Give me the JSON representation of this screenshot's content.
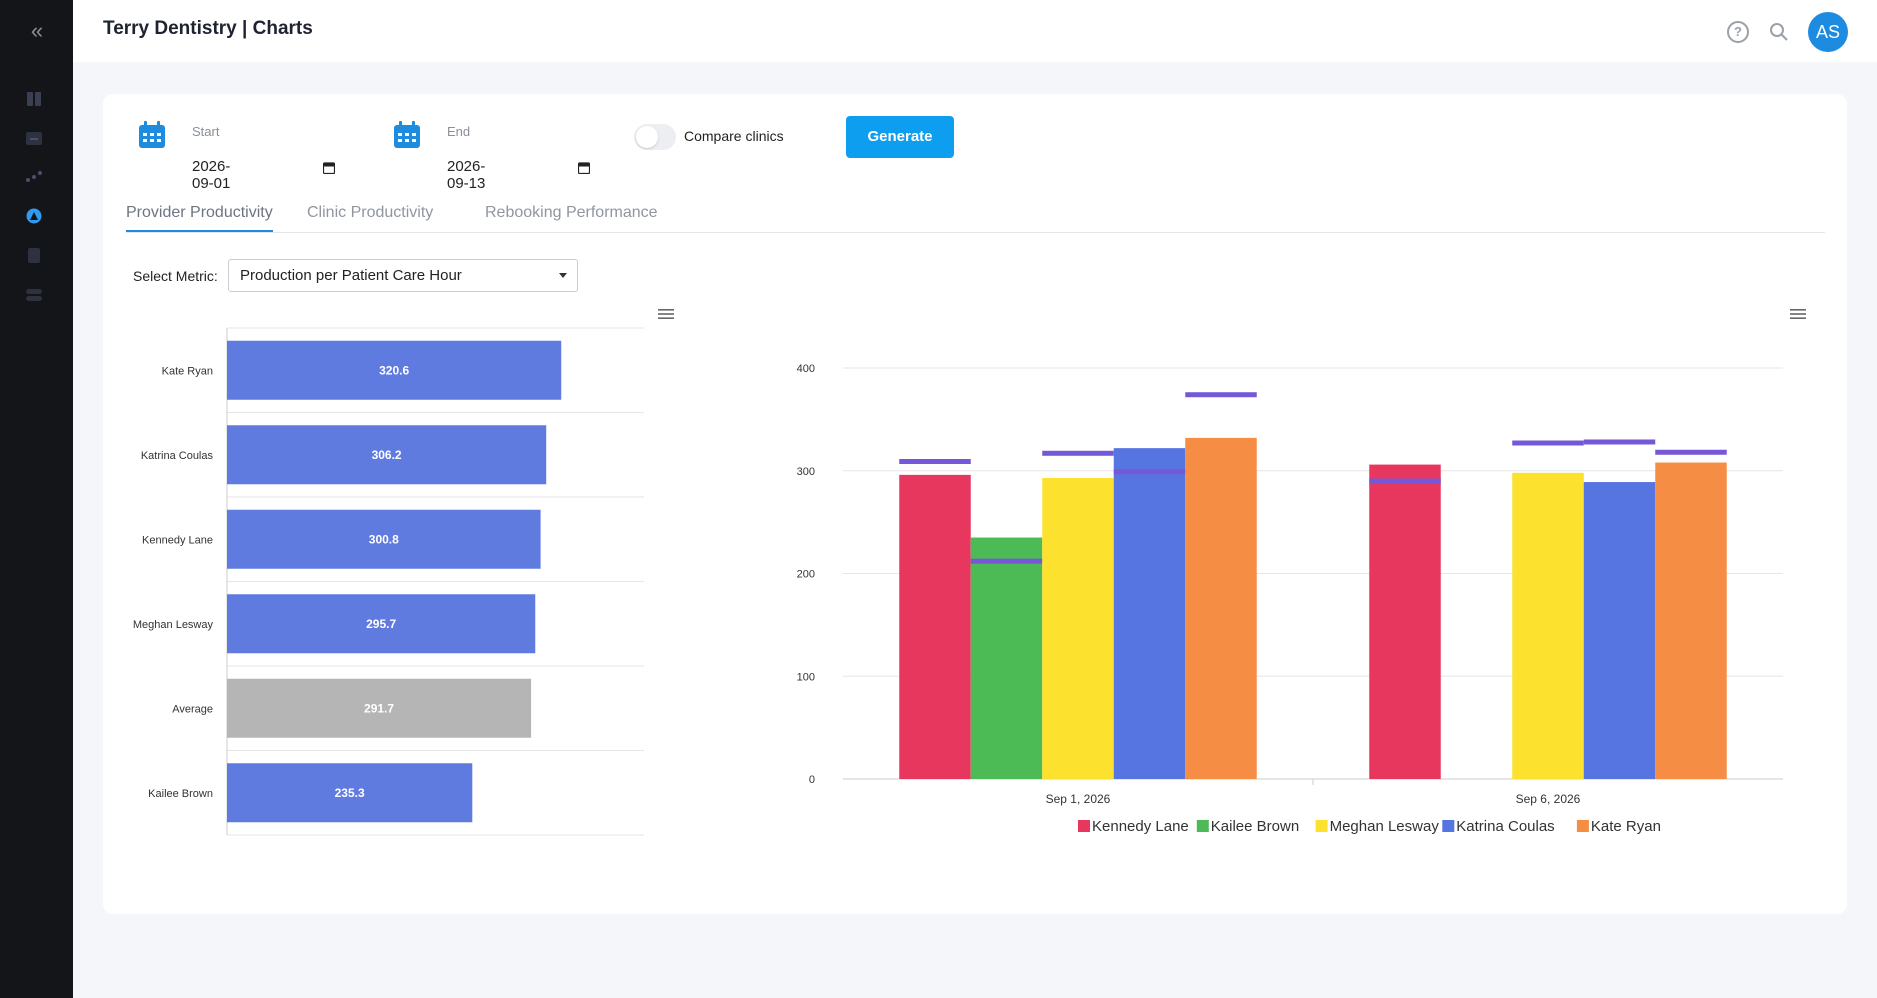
{
  "header": {
    "title": "Terry Dentistry | Charts",
    "avatar_initials": "AS"
  },
  "sidebar": {
    "collapse_icon": "double-chevron-left-icon",
    "items": [
      {
        "icon": "dashboard-icon"
      },
      {
        "icon": "chat-icon"
      },
      {
        "icon": "scatter-icon"
      },
      {
        "icon": "chart-circle-icon",
        "active": true
      },
      {
        "icon": "clipboard-icon"
      },
      {
        "icon": "toggle-settings-icon"
      }
    ]
  },
  "filters": {
    "start": {
      "label": "Start",
      "value": "2026-09-01"
    },
    "end": {
      "label": "End",
      "value": "2026-09-13"
    },
    "compare_label": "Compare clinics",
    "compare_enabled": false,
    "generate_label": "Generate"
  },
  "tabs": [
    {
      "label": "Provider Productivity",
      "active": true
    },
    {
      "label": "Clinic Productivity",
      "active": false
    },
    {
      "label": "Rebooking Performance",
      "active": false
    }
  ],
  "metric": {
    "label": "Select Metric:",
    "value": "Production per Patient Care Hour"
  },
  "colors": {
    "accent": "#1c8be0",
    "button": "#0d9ef0",
    "hbar": "#5f7be0",
    "average_bar": "#b5b5b5",
    "target_line": "#7558d8"
  },
  "chart_data": [
    {
      "type": "bar",
      "orientation": "horizontal",
      "categories": [
        "Kate Ryan",
        "Katrina Coulas",
        "Kennedy Lane",
        "Meghan Lesway",
        "Average",
        "Kailee Brown"
      ],
      "values": [
        320.6,
        306.2,
        300.8,
        295.7,
        291.7,
        235.3
      ],
      "data_labels": [
        "320.6",
        "306.2",
        "300.8",
        "295.7",
        "291.7",
        "235.3"
      ],
      "xlim": [
        0,
        400
      ],
      "xticks": [
        "0",
        "100",
        "200",
        "300",
        "400"
      ],
      "grid": true
    },
    {
      "type": "bar",
      "categories": [
        "Sep 1, 2026",
        "Sep 6, 2026"
      ],
      "ylim": [
        0,
        400
      ],
      "yticks": [
        "0",
        "100",
        "200",
        "300",
        "400"
      ],
      "legend_position": "bottom",
      "series": [
        {
          "name": "Kennedy Lane",
          "color": "#e8375f",
          "values": [
            296,
            306
          ],
          "targets": [
            309,
            290
          ]
        },
        {
          "name": "Kailee Brown",
          "color": "#4cba55",
          "values": [
            235,
            null
          ],
          "targets": [
            212,
            null
          ]
        },
        {
          "name": "Meghan Lesway",
          "color": "#fce22e",
          "values": [
            293,
            298
          ],
          "targets": [
            317,
            327
          ]
        },
        {
          "name": "Katrina Coulas",
          "color": "#5675e0",
          "values": [
            322,
            289
          ],
          "targets": [
            299,
            328
          ]
        },
        {
          "name": "Kate Ryan",
          "color": "#f68d44",
          "values": [
            332,
            308
          ],
          "targets": [
            374,
            318
          ]
        }
      ]
    }
  ]
}
